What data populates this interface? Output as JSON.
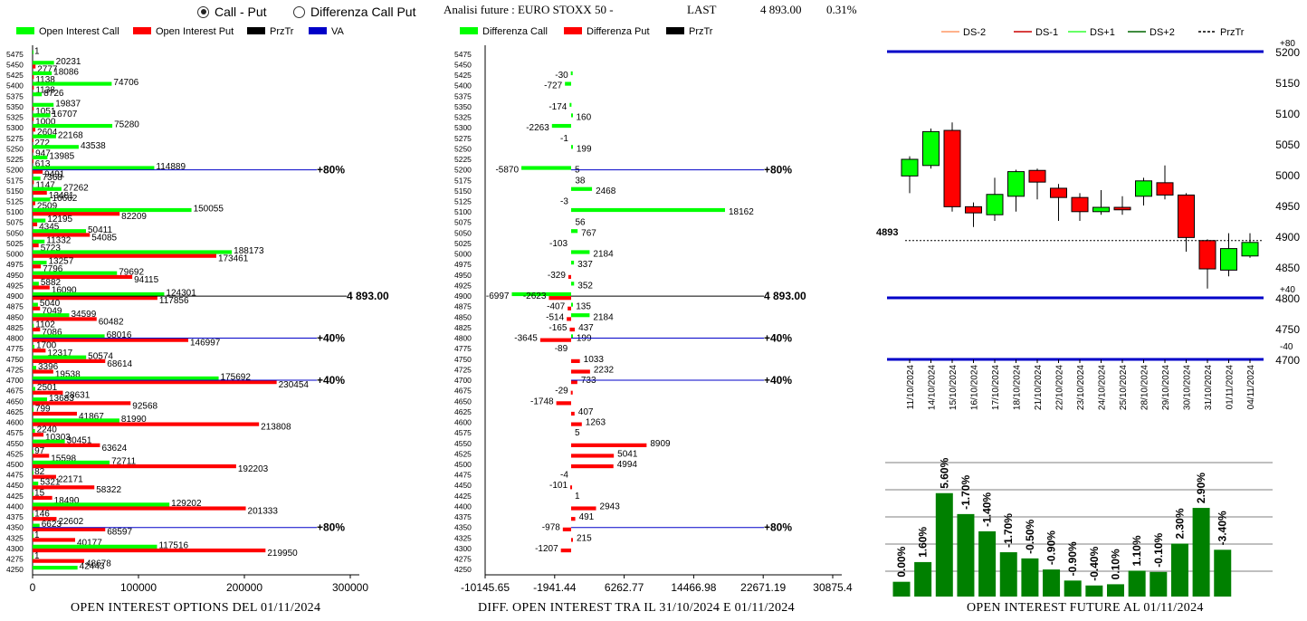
{
  "header": {
    "radio1": "Call - Put",
    "radio2": "Differenza Call Put",
    "analisi": "Analisi future : EURO STOXX 50 -",
    "last_label": "LAST",
    "last_value": "4 893.00",
    "last_pct": "0.31%"
  },
  "colors": {
    "green": "#00ff00",
    "red": "#ff0000",
    "navy": "#0000c8",
    "darkgreen": "#008000"
  },
  "captions": {
    "left": "OPEN INTEREST OPTIONS DEL 01/11/2024",
    "middle": "DIFF. OPEN INTEREST TRA IL 31/10/2024 E 01/11/2024",
    "right": "OPEN INTEREST FUTURE AL 01/11/2024"
  },
  "chart_data": [
    {
      "type": "bar",
      "orientation": "horizontal",
      "legend": [
        "Open Interest Call",
        "Open Interest Put",
        "PrzTr",
        "VA"
      ],
      "strikes": [
        5475,
        5450,
        5425,
        5400,
        5375,
        5350,
        5325,
        5300,
        5275,
        5250,
        5225,
        5200,
        5175,
        5150,
        5125,
        5100,
        5075,
        5050,
        5025,
        5000,
        4975,
        4950,
        4925,
        4900,
        4875,
        4850,
        4825,
        4800,
        4775,
        4750,
        4725,
        4700,
        4675,
        4650,
        4625,
        4600,
        4575,
        4550,
        4525,
        4500,
        4475,
        4450,
        4425,
        4400,
        4375,
        4350,
        4325,
        4300,
        4275,
        4250
      ],
      "series": [
        {
          "name": "Open Interest Call",
          "values": [
            1,
            20231,
            18086,
            74706,
            8726,
            19837,
            16707,
            75280,
            22168,
            43538,
            13985,
            114889,
            7368,
            27262,
            16662,
            150055,
            12195,
            50411,
            11332,
            188173,
            13257,
            79692,
            5882,
            124301,
            5040,
            34599,
            1102,
            68016,
            1700,
            50574,
            3396,
            175692,
            2501,
            13683,
            799,
            81990,
            2240,
            30451,
            97,
            72711,
            82,
            5321,
            15,
            129202,
            146,
            6623,
            1,
            117516,
            1,
            42443
          ]
        },
        {
          "name": "Open Interest Put",
          "values": [
            null,
            2777,
            1138,
            1138,
            null,
            1051,
            1000,
            2604,
            272,
            947,
            613,
            9491,
            1147,
            13481,
            2509,
            82209,
            4345,
            54085,
            5723,
            173461,
            7796,
            94115,
            16090,
            117856,
            7049,
            60482,
            7086,
            146997,
            12317,
            68614,
            19538,
            230454,
            28631,
            92568,
            41867,
            213808,
            10303,
            63624,
            15598,
            192203,
            22171,
            58322,
            18490,
            201333,
            22602,
            68597,
            40177,
            219950,
            48678,
            null
          ]
        }
      ],
      "lines": [
        {
          "label": "80%",
          "strike": 5200
        },
        {
          "label": "4 893.00",
          "strike": 4900
        },
        {
          "label": "40%",
          "strike": 4800
        },
        {
          "label": "40%",
          "strike": 4700
        },
        {
          "label": "80%",
          "strike": 4350
        }
      ],
      "xticks": [
        "0",
        "100000",
        "200000",
        "300000"
      ],
      "xlim": [
        0,
        300000
      ]
    },
    {
      "type": "bar",
      "orientation": "horizontal",
      "legend": [
        "Differenza Call",
        "Differenza Put",
        "PrzTr"
      ],
      "strikes": [
        5475,
        5450,
        5425,
        5400,
        5375,
        5350,
        5325,
        5300,
        5275,
        5250,
        5225,
        5200,
        5175,
        5150,
        5125,
        5100,
        5075,
        5050,
        5025,
        5000,
        4975,
        4950,
        4925,
        4900,
        4875,
        4850,
        4825,
        4800,
        4775,
        4750,
        4725,
        4700,
        4675,
        4650,
        4625,
        4600,
        4575,
        4550,
        4525,
        4500,
        4475,
        4450,
        4425,
        4400,
        4375,
        4350,
        4325,
        4300,
        4275,
        4250
      ],
      "labels": [
        {
          "strike": 5425,
          "text": "-30"
        },
        {
          "strike": 5400,
          "text": "-727"
        },
        {
          "strike": 5350,
          "text": "-174"
        },
        {
          "strike": 5325,
          "text": "160"
        },
        {
          "strike": 5300,
          "text": "-2263"
        },
        {
          "strike": 5275,
          "text": "-1"
        },
        {
          "strike": 5250,
          "text": "199"
        },
        {
          "strike": 5200,
          "text": "-5870"
        },
        {
          "strike": 5200,
          "text": "5"
        },
        {
          "strike": 5175,
          "text": "38"
        },
        {
          "strike": 5150,
          "text": "2468"
        },
        {
          "strike": 5125,
          "text": "-3"
        },
        {
          "strike": 5100,
          "text": "18162"
        },
        {
          "strike": 5075,
          "text": "56"
        },
        {
          "strike": 5050,
          "text": "767"
        },
        {
          "strike": 5025,
          "text": "-103"
        },
        {
          "strike": 5000,
          "text": "2184"
        },
        {
          "strike": 4975,
          "text": "337"
        },
        {
          "strike": 4950,
          "text": "-329"
        },
        {
          "strike": 4925,
          "text": "352"
        },
        {
          "strike": 4900,
          "text": "-6997"
        },
        {
          "strike": 4900,
          "text": "-2623"
        },
        {
          "strike": 4875,
          "text": "-407"
        },
        {
          "strike": 4875,
          "text": "135"
        },
        {
          "strike": 4850,
          "text": "-514"
        },
        {
          "strike": 4850,
          "text": "2184"
        },
        {
          "strike": 4825,
          "text": "-165"
        },
        {
          "strike": 4825,
          "text": "437"
        },
        {
          "strike": 4800,
          "text": "-3645"
        },
        {
          "strike": 4800,
          "text": "199"
        },
        {
          "strike": 4775,
          "text": "-89"
        },
        {
          "strike": 4750,
          "text": "1033"
        },
        {
          "strike": 4725,
          "text": "2232"
        },
        {
          "strike": 4700,
          "text": "733"
        },
        {
          "strike": 4675,
          "text": "-29"
        },
        {
          "strike": 4650,
          "text": "-1748"
        },
        {
          "strike": 4625,
          "text": "407"
        },
        {
          "strike": 4600,
          "text": "1263"
        },
        {
          "strike": 4575,
          "text": "5"
        },
        {
          "strike": 4550,
          "text": "8909"
        },
        {
          "strike": 4525,
          "text": "5041"
        },
        {
          "strike": 4500,
          "text": "4994"
        },
        {
          "strike": 4475,
          "text": "-4"
        },
        {
          "strike": 4450,
          "text": "-101"
        },
        {
          "strike": 4425,
          "text": "1"
        },
        {
          "strike": 4400,
          "text": "2943"
        },
        {
          "strike": 4375,
          "text": "491"
        },
        {
          "strike": 4350,
          "text": "-978"
        },
        {
          "strike": 4325,
          "text": "215"
        },
        {
          "strike": 4300,
          "text": "-1207"
        }
      ],
      "bars": [
        {
          "strike": 5425,
          "value": -30,
          "series": "call"
        },
        {
          "strike": 5400,
          "value": -727,
          "series": "call"
        },
        {
          "strike": 5350,
          "value": -174,
          "series": "call"
        },
        {
          "strike": 5325,
          "value": 160,
          "series": "call"
        },
        {
          "strike": 5300,
          "value": -2263,
          "series": "call"
        },
        {
          "strike": 5250,
          "value": 199,
          "series": "call"
        },
        {
          "strike": 5200,
          "value": -5870,
          "series": "call"
        },
        {
          "strike": 5150,
          "value": 2468,
          "series": "call"
        },
        {
          "strike": 5100,
          "value": 18162,
          "series": "call"
        },
        {
          "strike": 5050,
          "value": 767,
          "series": "call"
        },
        {
          "strike": 5000,
          "value": 2184,
          "series": "call"
        },
        {
          "strike": 4975,
          "value": 337,
          "series": "call"
        },
        {
          "strike": 4950,
          "value": -329,
          "series": "put"
        },
        {
          "strike": 4925,
          "value": 352,
          "series": "call"
        },
        {
          "strike": 4900,
          "value": -6997,
          "series": "call"
        },
        {
          "strike": 4900,
          "value": -2623,
          "series": "put"
        },
        {
          "strike": 4875,
          "value": -407,
          "series": "put"
        },
        {
          "strike": 4875,
          "value": 135,
          "series": "call"
        },
        {
          "strike": 4850,
          "value": -514,
          "series": "put"
        },
        {
          "strike": 4850,
          "value": 2184,
          "series": "call"
        },
        {
          "strike": 4825,
          "value": -165,
          "series": "put"
        },
        {
          "strike": 4825,
          "value": 437,
          "series": "put"
        },
        {
          "strike": 4800,
          "value": -3645,
          "series": "put"
        },
        {
          "strike": 4800,
          "value": 199,
          "series": "call"
        },
        {
          "strike": 4750,
          "value": 1033,
          "series": "put"
        },
        {
          "strike": 4725,
          "value": 2232,
          "series": "put"
        },
        {
          "strike": 4700,
          "value": 733,
          "series": "put"
        },
        {
          "strike": 4675,
          "value": -29,
          "series": "put"
        },
        {
          "strike": 4650,
          "value": -1748,
          "series": "put"
        },
        {
          "strike": 4625,
          "value": 407,
          "series": "put"
        },
        {
          "strike": 4600,
          "value": 1263,
          "series": "put"
        },
        {
          "strike": 4550,
          "value": 8909,
          "series": "put"
        },
        {
          "strike": 4525,
          "value": 5041,
          "series": "put"
        },
        {
          "strike": 4500,
          "value": 4994,
          "series": "put"
        },
        {
          "strike": 4450,
          "value": -101,
          "series": "put"
        },
        {
          "strike": 4400,
          "value": 2943,
          "series": "put"
        },
        {
          "strike": 4375,
          "value": 491,
          "series": "put"
        },
        {
          "strike": 4350,
          "value": -978,
          "series": "put"
        },
        {
          "strike": 4325,
          "value": 215,
          "series": "put"
        },
        {
          "strike": 4300,
          "value": -1207,
          "series": "put"
        }
      ],
      "lines": [
        {
          "label": "80%",
          "strike": 5200
        },
        {
          "label": "4 893.00",
          "strike": 4900
        },
        {
          "label": "40%",
          "strike": 4800
        },
        {
          "label": "40%",
          "strike": 4700
        },
        {
          "label": "80%",
          "strike": 4350
        }
      ],
      "xticks": [
        "-10145.65",
        "-1941.44",
        "6262.77",
        "14466.98",
        "22671.19",
        "30875.4"
      ],
      "xlim": [
        -10145.65,
        30875.4
      ]
    },
    {
      "type": "candlestick",
      "legend": [
        "DS-2",
        "DS-1",
        "DS+1",
        "DS+2",
        "PrzTr"
      ],
      "dates": [
        "11/10/2024",
        "14/10/2024",
        "15/10/2024",
        "16/10/2024",
        "17/10/2024",
        "18/10/2024",
        "21/10/2024",
        "22/10/2024",
        "23/10/2024",
        "24/10/2024",
        "25/10/2024",
        "28/10/2024",
        "29/10/2024",
        "30/10/2024",
        "31/10/2024",
        "01/11/2024",
        "04/11/2024"
      ],
      "candles": [
        {
          "o": 4998,
          "c": 5025,
          "h": 5030,
          "l": 4970
        },
        {
          "o": 5015,
          "c": 5070,
          "h": 5075,
          "l": 5010
        },
        {
          "o": 5072,
          "c": 4948,
          "h": 5085,
          "l": 4940
        },
        {
          "o": 4948,
          "c": 4938,
          "h": 4955,
          "l": 4915
        },
        {
          "o": 4935,
          "c": 4968,
          "h": 4995,
          "l": 4925
        },
        {
          "o": 4965,
          "c": 5005,
          "h": 5008,
          "l": 4940
        },
        {
          "o": 5007,
          "c": 4988,
          "h": 5010,
          "l": 4960
        },
        {
          "o": 4978,
          "c": 4963,
          "h": 4985,
          "l": 4925
        },
        {
          "o": 4963,
          "c": 4940,
          "h": 4970,
          "l": 4925
        },
        {
          "o": 4940,
          "c": 4947,
          "h": 4975,
          "l": 4935
        },
        {
          "o": 4947,
          "c": 4943,
          "h": 4965,
          "l": 4935
        },
        {
          "o": 4965,
          "c": 4990,
          "h": 4995,
          "l": 4950
        },
        {
          "o": 4987,
          "c": 4967,
          "h": 5015,
          "l": 4960
        },
        {
          "o": 4967,
          "c": 4898,
          "h": 4970,
          "l": 4875
        },
        {
          "o": 4893,
          "c": 4847,
          "h": 4895,
          "l": 4815
        },
        {
          "o": 4845,
          "c": 4880,
          "h": 4905,
          "l": 4835
        },
        {
          "o": 4868,
          "c": 4890,
          "h": 4905,
          "l": 4865
        }
      ],
      "last_label": "4893",
      "last": 4893,
      "lines": [
        {
          "label": "+80",
          "y": 5200
        },
        {
          "label": "+40",
          "y": 4800
        },
        {
          "label": "-40",
          "y": 4700
        }
      ],
      "yticks": [
        "5200",
        "5150",
        "5100",
        "5050",
        "5000",
        "4950",
        "4900",
        "4850",
        "4800",
        "4750",
        "4700"
      ],
      "ylim": [
        4700,
        5200
      ]
    },
    {
      "type": "bar",
      "values": [
        0.0,
        1.6,
        5.6,
        -1.7,
        -1.4,
        -1.7,
        -0.5,
        -0.9,
        -0.9,
        -0.4,
        0.1,
        1.1,
        -0.1,
        2.3,
        2.9,
        -3.4
      ],
      "labels": [
        "0.00%",
        "1.60%",
        "5.60%",
        "-1.70%",
        "-1.40%",
        "-1.70%",
        "-0.50%",
        "-0.90%",
        "-0.90%",
        "-0.40%",
        "0.10%",
        "1.10%",
        "-0.10%",
        "2.30%",
        "2.90%",
        "-3.40%"
      ]
    }
  ]
}
